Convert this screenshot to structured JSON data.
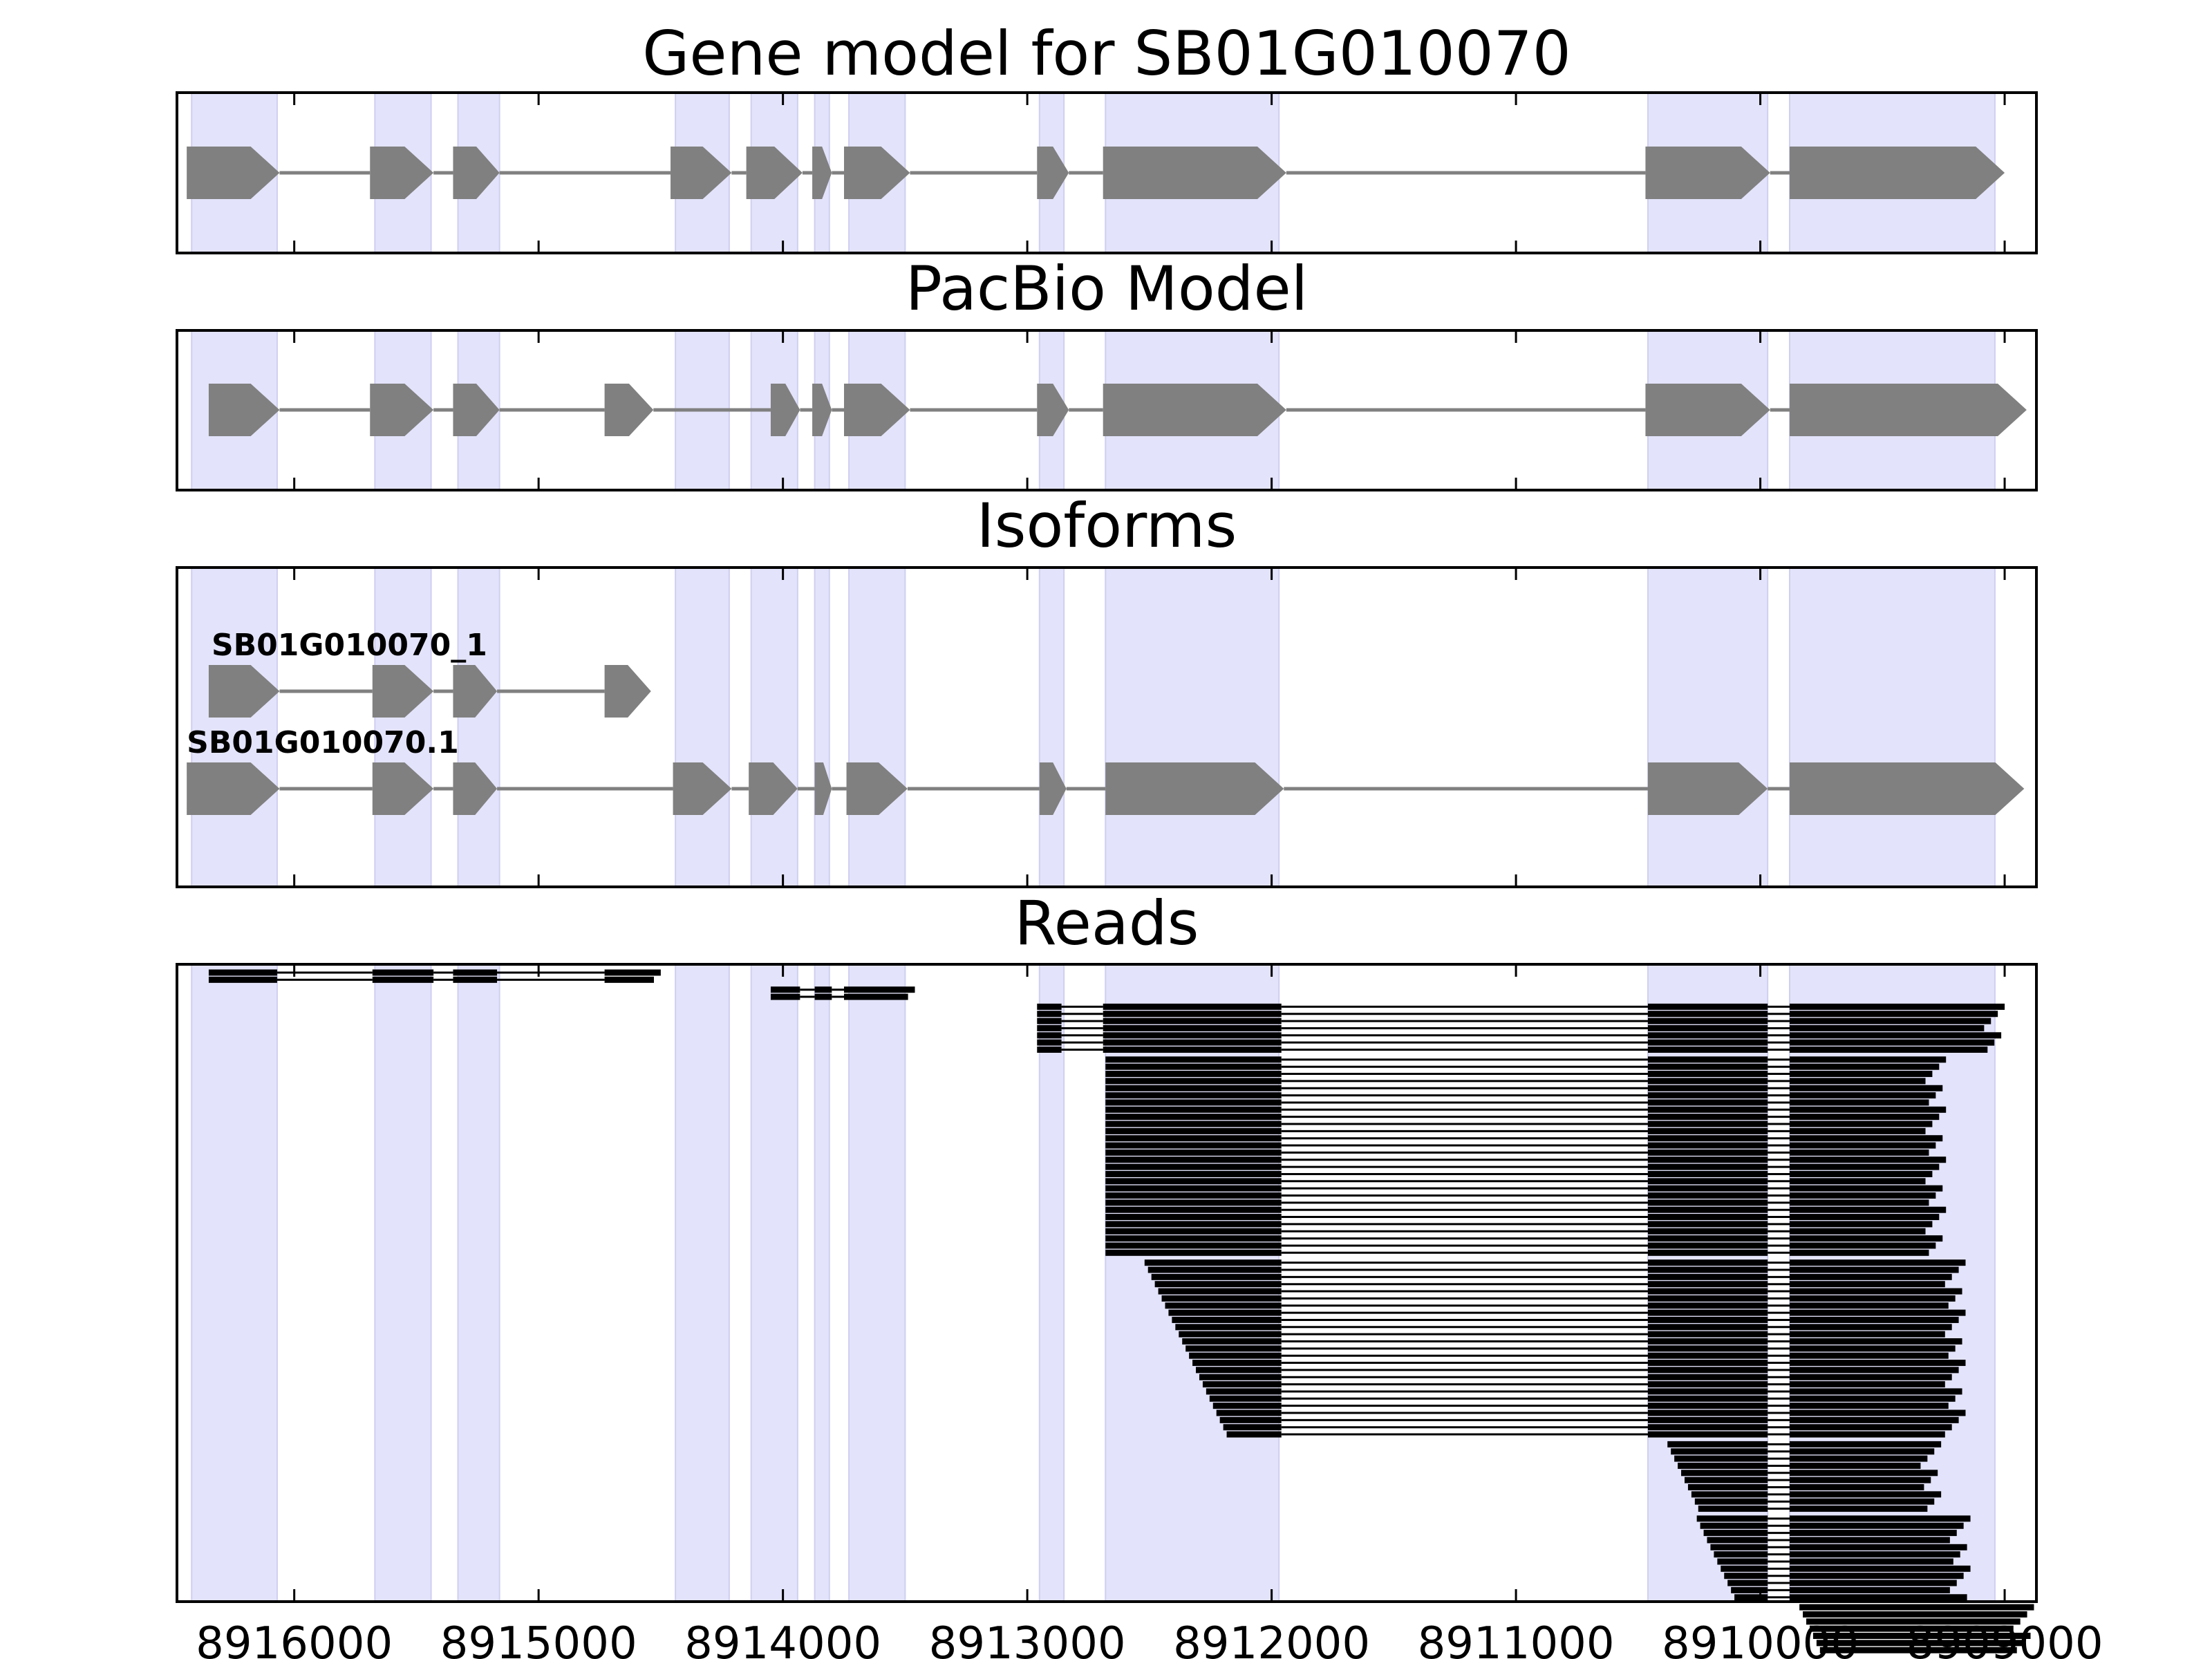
{
  "chart_data": {
    "type": "gene-track",
    "x_ticks": [
      8916000,
      8915000,
      8914000,
      8913000,
      8912000,
      8911000,
      8910000,
      8909000
    ],
    "x_tick_labels": [
      "8916000",
      "8915000",
      "8914000",
      "8913000",
      "8912000",
      "8911000",
      "8910000",
      "8909000"
    ],
    "colors": {
      "exon": "#808080",
      "intron": "#808080",
      "band": "#e3e3fb",
      "read": "#000000"
    },
    "bands": [
      [
        8916420,
        8916070
      ],
      [
        8915670,
        8915440
      ],
      [
        8915330,
        8915160
      ],
      [
        8914440,
        8914220
      ],
      [
        8914130,
        8913940
      ],
      [
        8913870,
        8913810
      ],
      [
        8913730,
        8913500
      ],
      [
        8912950,
        8912850
      ],
      [
        8912680,
        8911970
      ],
      [
        8910460,
        8909970
      ],
      [
        8909880,
        8909040
      ]
    ],
    "panels": [
      {
        "title": "Gene model for SB01G010070",
        "tracks": [
          {
            "label": "",
            "exons": [
              [
                8916440,
                8916060
              ],
              [
                8915690,
                8915430
              ],
              [
                8915350,
                8915160
              ],
              [
                8914460,
                8914210
              ],
              [
                8914150,
                8913920
              ],
              [
                8913880,
                8913800
              ],
              [
                8913750,
                8913480
              ],
              [
                8912960,
                8912830
              ],
              [
                8912690,
                8911940
              ],
              [
                8910470,
                8909960
              ],
              [
                8909880,
                8909000
              ]
            ]
          }
        ]
      },
      {
        "title": "PacBio Model",
        "tracks": [
          {
            "label": "",
            "exons": [
              [
                8916350,
                8916060
              ],
              [
                8915690,
                8915430
              ],
              [
                8915350,
                8915160
              ],
              [
                8914730,
                8914530
              ],
              [
                8914050,
                8913930
              ],
              [
                8913880,
                8913800
              ],
              [
                8913750,
                8913480
              ],
              [
                8912960,
                8912830
              ],
              [
                8912690,
                8911940
              ],
              [
                8910470,
                8909960
              ],
              [
                8909880,
                8908910
              ]
            ]
          }
        ]
      },
      {
        "title": "Isoforms",
        "tracks": [
          {
            "label": "SB01G010070_1",
            "exons": [
              [
                8916350,
                8916060
              ],
              [
                8915680,
                8915430
              ],
              [
                8915350,
                8915170
              ],
              [
                8914730,
                8914540
              ]
            ]
          },
          {
            "label": "SB01G010070.1",
            "exons": [
              [
                8916440,
                8916060
              ],
              [
                8915680,
                8915430
              ],
              [
                8915350,
                8915170
              ],
              [
                8914450,
                8914210
              ],
              [
                8914140,
                8913940
              ],
              [
                8913870,
                8913800
              ],
              [
                8913740,
                8913490
              ],
              [
                8912950,
                8912840
              ],
              [
                8912680,
                8911950
              ],
              [
                8910460,
                8909970
              ],
              [
                8909880,
                8908920
              ]
            ]
          }
        ]
      }
    ],
    "reads_title": "Reads",
    "read_groups": [
      {
        "count": 2,
        "exons": [
          [
            8916350,
            8916070
          ],
          [
            8915680,
            8915430
          ],
          [
            8915350,
            8915170
          ],
          [
            8914730,
            8914540
          ]
        ]
      },
      {
        "count": 2,
        "exons": [
          [
            8914050,
            8913930
          ],
          [
            8913870,
            8913800
          ],
          [
            8913750,
            8913500
          ]
        ]
      },
      {
        "count": 7,
        "exons": [
          [
            8912960,
            8912860
          ],
          [
            8912690,
            8911960
          ],
          [
            8910460,
            8909970
          ],
          [
            8909880,
            8909040
          ]
        ]
      },
      {
        "count": 28,
        "exons": [
          [
            8912680,
            8911960
          ],
          [
            8910460,
            8909970
          ],
          [
            8909880,
            8909280
          ]
        ]
      },
      {
        "count": 25,
        "exons": [
          [
            8912520,
            8911960
          ],
          [
            8910460,
            8909970
          ],
          [
            8909880,
            8909200
          ]
        ]
      },
      {
        "count": 10,
        "exons": [
          [
            8910380,
            8909970
          ],
          [
            8909880,
            8909300
          ]
        ]
      },
      {
        "count": 12,
        "exons": [
          [
            8910260,
            8909970
          ],
          [
            8909880,
            8909180
          ]
        ]
      },
      {
        "count": 7,
        "exons": [
          [
            8909840,
            8908920
          ]
        ]
      }
    ]
  }
}
